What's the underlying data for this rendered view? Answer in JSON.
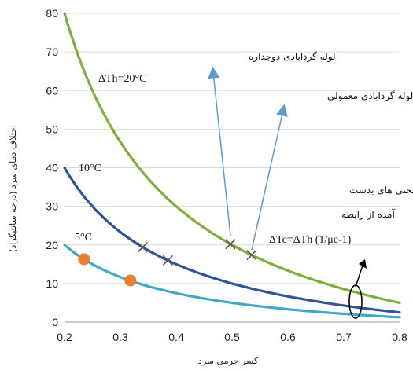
{
  "chart_data": {
    "type": "line",
    "xlabel": "کسر جرمی سرد",
    "ylabel": "اختلاف دمای سرد (درجه سانتیگراد)",
    "xlim": [
      0.2,
      0.8
    ],
    "ylim": [
      0,
      80
    ],
    "xticks": [
      "0.2",
      "0.3",
      "0.4",
      "0.5",
      "0.6",
      "0.7",
      "0.8"
    ],
    "yticks": [
      "0",
      "10",
      "20",
      "30",
      "40",
      "50",
      "60",
      "70",
      "80"
    ],
    "grid": true,
    "series": [
      {
        "name": "ΔTh=20°C",
        "color": "#7fae3a",
        "dTh": 20
      },
      {
        "name": "10°C",
        "color": "#2f5597",
        "dTh": 10
      },
      {
        "name": "5°C",
        "color": "#3fa9c5",
        "dTh": 5
      }
    ],
    "markers_circle": {
      "color": "#ed7d31",
      "points": [
        [
          0.235,
          16.3
        ],
        [
          0.318,
          10.8
        ]
      ]
    },
    "markers_x": {
      "color": "#555555",
      "points": [
        [
          0.34,
          19.4
        ],
        [
          0.385,
          16.0
        ],
        [
          0.497,
          20.2
        ],
        [
          0.535,
          17.4
        ]
      ]
    },
    "annotations": {
      "label_20": "ΔTh=20°C",
      "label_10": "10°C",
      "label_5": "5°C",
      "double_tube": "لوله گردابادی دوجداره",
      "normal_tube": "لوله گردابادی معمولی",
      "curves_line1": "منحنی های بدست",
      "curves_line2": "آمده از رابطه",
      "formula": "ΔTc=ΔTh (1/μc-1)"
    }
  }
}
